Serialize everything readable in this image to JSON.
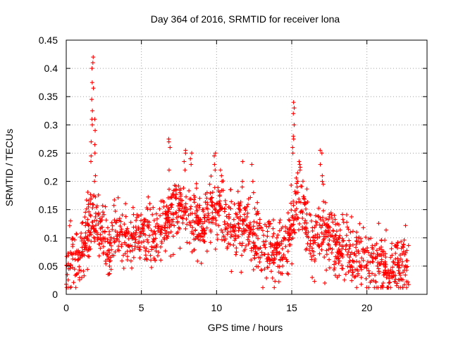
{
  "chart_data": {
    "type": "scatter",
    "title": "Day 364 of 2016, SRMTID for receiver lona",
    "xlabel": "GPS time / hours",
    "ylabel": "SRMTID / TECUs",
    "xlim": [
      0,
      24
    ],
    "ylim": [
      0,
      0.45
    ],
    "xticks": [
      0,
      5,
      10,
      15,
      20
    ],
    "xtick_labels": [
      "0",
      "5",
      "10",
      "15",
      "20"
    ],
    "yticks": [
      0,
      0.05,
      0.1,
      0.15,
      0.2,
      0.25,
      0.3,
      0.35,
      0.4,
      0.45
    ],
    "ytick_labels": [
      "0",
      "0.05",
      "0.1",
      "0.15",
      "0.2",
      "0.25",
      "0.3",
      "0.35",
      "0.4",
      "0.45"
    ],
    "grid": true,
    "marker": "+",
    "color": "#ff0000",
    "series": [
      {
        "name": "SRMTID",
        "trend": [
          [
            0.0,
            0.045
          ],
          [
            0.5,
            0.065
          ],
          [
            1.0,
            0.075
          ],
          [
            1.4,
            0.11
          ],
          [
            1.6,
            0.14
          ],
          [
            2.0,
            0.13
          ],
          [
            2.5,
            0.09
          ],
          [
            3.0,
            0.085
          ],
          [
            3.5,
            0.11
          ],
          [
            4.0,
            0.095
          ],
          [
            4.5,
            0.1
          ],
          [
            5.0,
            0.11
          ],
          [
            5.5,
            0.115
          ],
          [
            6.0,
            0.1
          ],
          [
            6.5,
            0.12
          ],
          [
            7.0,
            0.15
          ],
          [
            7.5,
            0.16
          ],
          [
            8.0,
            0.15
          ],
          [
            8.5,
            0.13
          ],
          [
            9.0,
            0.12
          ],
          [
            9.5,
            0.14
          ],
          [
            10.0,
            0.15
          ],
          [
            10.5,
            0.14
          ],
          [
            11.0,
            0.12
          ],
          [
            11.5,
            0.12
          ],
          [
            12.0,
            0.13
          ],
          [
            12.5,
            0.1
          ],
          [
            13.0,
            0.08
          ],
          [
            13.5,
            0.08
          ],
          [
            14.0,
            0.075
          ],
          [
            14.5,
            0.08
          ],
          [
            15.0,
            0.12
          ],
          [
            15.4,
            0.17
          ],
          [
            15.8,
            0.15
          ],
          [
            16.2,
            0.1
          ],
          [
            16.5,
            0.09
          ],
          [
            17.0,
            0.12
          ],
          [
            17.5,
            0.1
          ],
          [
            18.0,
            0.09
          ],
          [
            18.5,
            0.08
          ],
          [
            19.0,
            0.07
          ],
          [
            19.5,
            0.065
          ],
          [
            20.0,
            0.06
          ],
          [
            20.5,
            0.055
          ],
          [
            21.0,
            0.05
          ],
          [
            21.5,
            0.045
          ],
          [
            22.0,
            0.055
          ],
          [
            22.8,
            0.06
          ]
        ],
        "spread": 0.03,
        "n_points": 1600,
        "x_range": [
          0.0,
          22.8
        ],
        "spikes": [
          {
            "x": 1.75,
            "values": [
              0.42,
              0.41,
              0.4,
              0.375,
              0.365,
              0.345
            ]
          },
          {
            "x": 1.7,
            "values": [
              0.325,
              0.31,
              0.3,
              0.27,
              0.245,
              0.235
            ]
          },
          {
            "x": 1.9,
            "values": [
              0.31,
              0.29,
              0.265,
              0.25,
              0.21,
              0.2
            ]
          },
          {
            "x": 6.85,
            "values": [
              0.275,
              0.27,
              0.26,
              0.22
            ]
          },
          {
            "x": 7.9,
            "values": [
              0.255,
              0.25,
              0.235,
              0.22
            ]
          },
          {
            "x": 8.3,
            "values": [
              0.25,
              0.24,
              0.23
            ]
          },
          {
            "x": 9.9,
            "values": [
              0.25,
              0.245,
              0.23,
              0.22
            ]
          },
          {
            "x": 10.3,
            "values": [
              0.22,
              0.21,
              0.2
            ]
          },
          {
            "x": 11.7,
            "values": [
              0.235,
              0.2,
              0.19
            ]
          },
          {
            "x": 12.4,
            "values": [
              0.23,
              0.2,
              0.18
            ]
          },
          {
            "x": 15.15,
            "values": [
              0.34,
              0.33,
              0.32,
              0.3
            ]
          },
          {
            "x": 15.1,
            "values": [
              0.28,
              0.275,
              0.26,
              0.25
            ]
          },
          {
            "x": 15.55,
            "values": [
              0.235,
              0.23,
              0.225,
              0.22
            ]
          },
          {
            "x": 15.35,
            "values": [
              0.215,
              0.2,
              0.19
            ]
          },
          {
            "x": 16.95,
            "values": [
              0.255,
              0.25,
              0.23
            ]
          },
          {
            "x": 17.05,
            "values": [
              0.21,
              0.2,
              0.195
            ]
          }
        ]
      }
    ]
  }
}
